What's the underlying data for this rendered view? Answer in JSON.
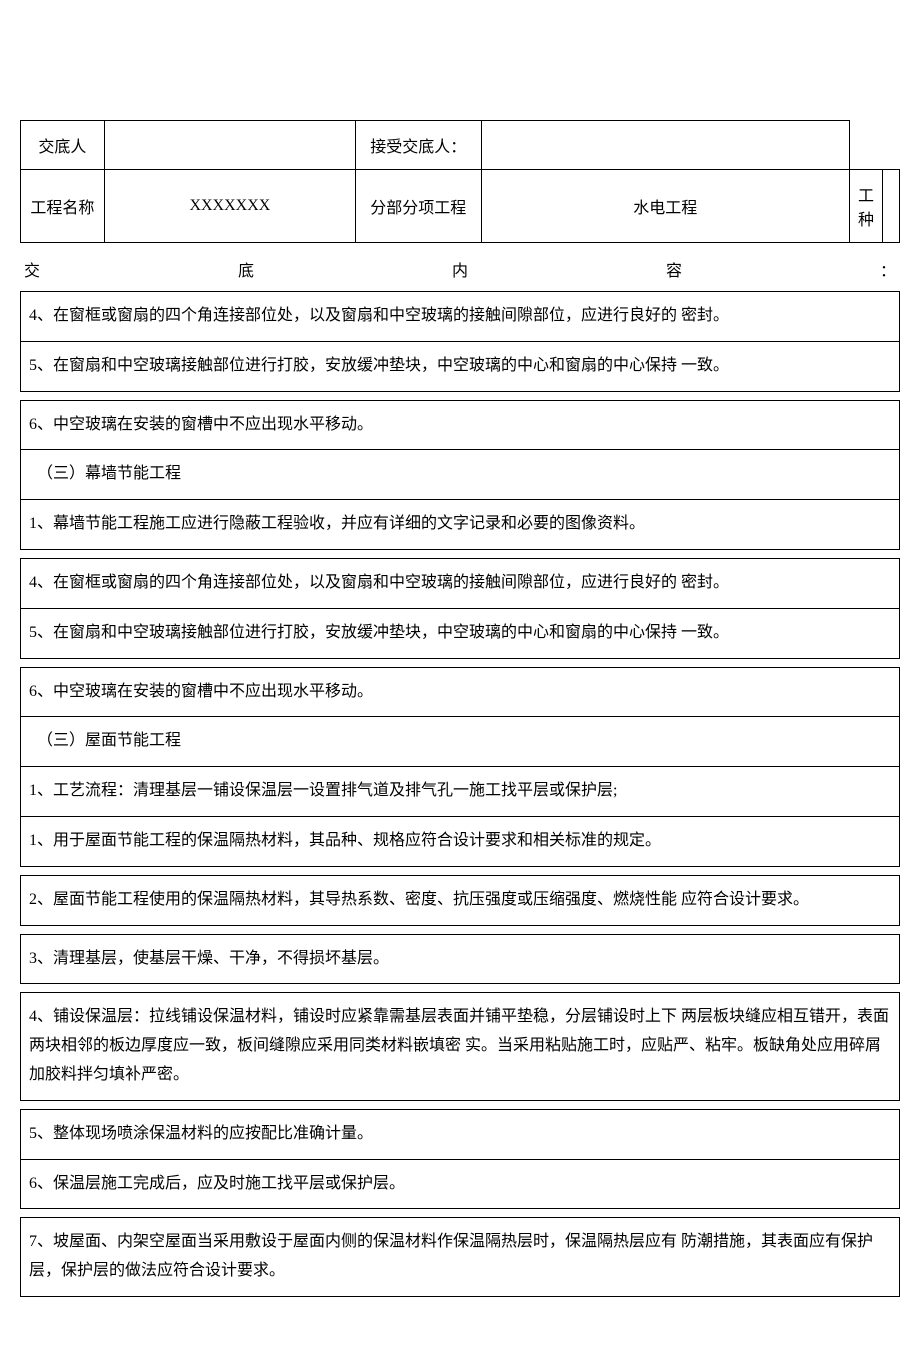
{
  "header": {
    "row1": {
      "label1": "交底人",
      "value1": "",
      "label2": "接受交底人：",
      "value2": ""
    },
    "row2": {
      "label1": "工程名称",
      "value1": "XXXXXXX",
      "label2": "分部分项工程",
      "value2": "水电工程",
      "label3": "工种",
      "value3": ""
    }
  },
  "section_title": {
    "c1": "交",
    "c2": "底",
    "c3": "内",
    "c4": "容",
    "c5": "："
  },
  "blocks": [
    {
      "rows": [
        "4、在窗框或窗扇的四个角连接部位处，以及窗扇和中空玻璃的接触间隙部位，应进行良好的 密封。",
        "5、在窗扇和中空玻璃接触部位进行打胶，安放缓冲垫块，中空玻璃的中心和窗扇的中心保持 一致。"
      ]
    },
    {
      "rows": [
        "6、中空玻璃在安装的窗槽中不应出现水平移动。",
        "　（三）幕墙节能工程",
        "1、幕墙节能工程施工应进行隐蔽工程验收，并应有详细的文字记录和必要的图像资料。"
      ]
    },
    {
      "rows": [
        "4、在窗框或窗扇的四个角连接部位处，以及窗扇和中空玻璃的接触间隙部位，应进行良好的 密封。",
        "5、在窗扇和中空玻璃接触部位进行打胶，安放缓冲垫块，中空玻璃的中心和窗扇的中心保持 一致。"
      ]
    },
    {
      "rows": [
        "6、中空玻璃在安装的窗槽中不应出现水平移动。",
        "　（三）屋面节能工程",
        "1、工艺流程：清理基层一铺设保温层一设置排气道及排气孔一施工找平层或保护层;",
        "1、用于屋面节能工程的保温隔热材料，其品种、规格应符合设计要求和相关标准的规定。"
      ]
    },
    {
      "rows": [
        "2、屋面节能工程使用的保温隔热材料，其导热系数、密度、抗压强度或压缩强度、燃烧性能 应符合设计要求。"
      ]
    },
    {
      "rows": [
        "3、清理基层，使基层干燥、干净，不得损坏基层。"
      ]
    },
    {
      "rows": [
        "4、铺设保温层：拉线铺设保温材料，铺设时应紧靠需基层表面并铺平垫稳，分层铺设时上下 两层板块缝应相互错开，表面两块相邻的板边厚度应一致，板间缝隙应采用同类材料嵌填密 实。当采用粘贴施工时，应贴严、粘牢。板缺角处应用碎屑加胶料拌匀填补严密。"
      ]
    },
    {
      "rows": [
        "5、整体现场喷涂保温材料的应按配比准确计量。",
        "6、保温层施工完成后，应及时施工找平层或保护层。"
      ]
    },
    {
      "rows": [
        "7、坡屋面、内架空屋面当采用敷设于屋面内侧的保温材料作保温隔热层时，保温隔热层应有 防潮措施，其表面应有保护层，保护层的做法应符合设计要求。"
      ]
    }
  ]
}
